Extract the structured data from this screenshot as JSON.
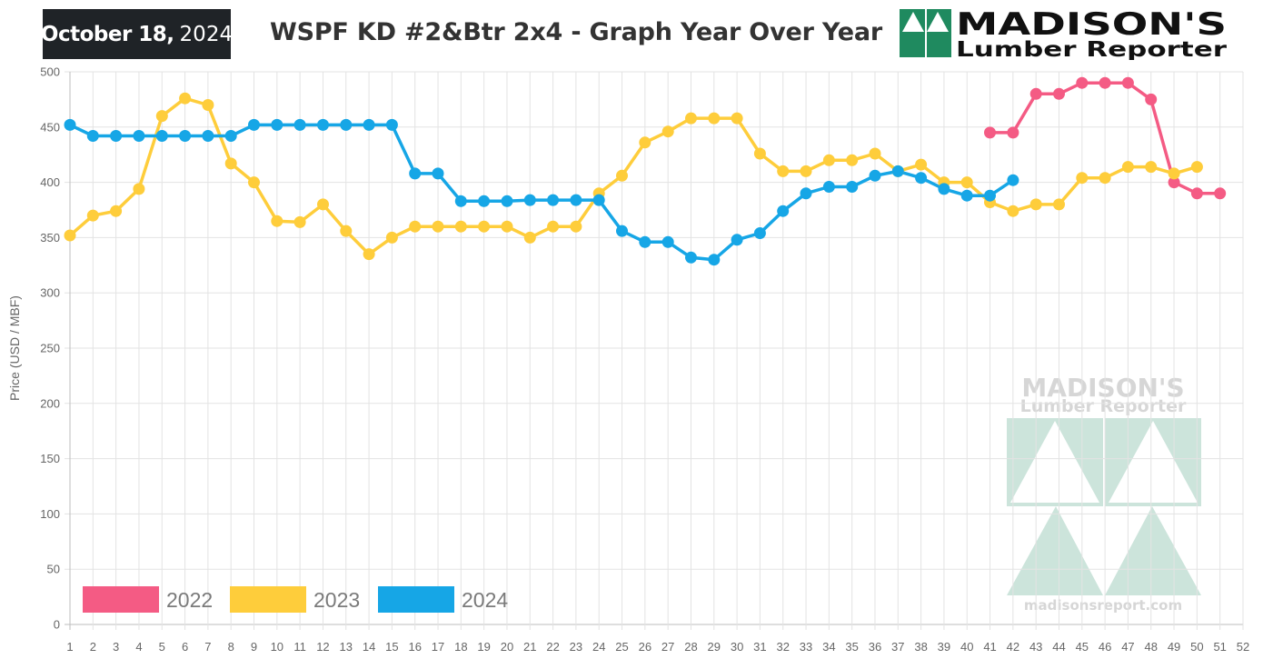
{
  "header": {
    "date_month_day": "October 18,",
    "date_year": "2024",
    "title": "WSPF KD #2&Btr 2x4 - Graph Year Over Year",
    "logo_line1": "MADISON'S",
    "logo_line2": "Lumber Reporter"
  },
  "watermark": {
    "line1": "MADISON'S",
    "line2": "Lumber Reporter",
    "url": "madisonsreport.com"
  },
  "chart_data": {
    "type": "line",
    "xlabel": "",
    "ylabel": "Price (USD / MBF)",
    "xlim": [
      1,
      52
    ],
    "ylim": [
      0,
      500
    ],
    "x_ticks": [
      1,
      2,
      3,
      4,
      5,
      6,
      7,
      8,
      9,
      10,
      11,
      12,
      13,
      14,
      15,
      16,
      17,
      18,
      19,
      20,
      21,
      22,
      23,
      24,
      25,
      26,
      27,
      28,
      29,
      30,
      31,
      32,
      33,
      34,
      35,
      36,
      37,
      38,
      39,
      40,
      41,
      42,
      43,
      44,
      45,
      46,
      47,
      48,
      49,
      50,
      51,
      52
    ],
    "y_ticks": [
      0,
      50,
      100,
      150,
      200,
      250,
      300,
      350,
      400,
      450,
      500
    ],
    "grid": true,
    "legend_position": "bottom-left",
    "series": [
      {
        "name": "2022",
        "color": "#f45b84",
        "x": [
          41,
          42,
          43,
          44,
          45,
          46,
          47,
          48,
          49,
          50,
          51
        ],
        "values": [
          445,
          445,
          480,
          480,
          490,
          490,
          490,
          475,
          400,
          390,
          390
        ]
      },
      {
        "name": "2023",
        "color": "#fecd3b",
        "x": [
          1,
          2,
          3,
          4,
          5,
          6,
          7,
          8,
          9,
          10,
          11,
          12,
          13,
          14,
          15,
          16,
          17,
          18,
          19,
          20,
          21,
          22,
          23,
          24,
          25,
          26,
          27,
          28,
          29,
          30,
          31,
          32,
          33,
          34,
          35,
          36,
          37,
          38,
          39,
          40,
          41,
          42,
          43,
          44,
          45,
          46,
          47,
          48,
          49,
          50
        ],
        "values": [
          352,
          370,
          374,
          394,
          460,
          476,
          470,
          417,
          400,
          365,
          364,
          380,
          356,
          335,
          350,
          360,
          360,
          360,
          360,
          360,
          350,
          360,
          360,
          390,
          406,
          436,
          446,
          458,
          458,
          458,
          426,
          410,
          410,
          420,
          420,
          426,
          410,
          416,
          400,
          400,
          382,
          374,
          380,
          380,
          404,
          404,
          414,
          414,
          408,
          414
        ]
      },
      {
        "name": "2024",
        "color": "#16a6e6",
        "x": [
          1,
          2,
          3,
          4,
          5,
          6,
          7,
          8,
          9,
          10,
          11,
          12,
          13,
          14,
          15,
          16,
          17,
          18,
          19,
          20,
          21,
          22,
          23,
          24,
          25,
          26,
          27,
          28,
          29,
          30,
          31,
          32,
          33,
          34,
          35,
          36,
          37,
          38,
          39,
          40,
          41,
          42
        ],
        "values": [
          452,
          442,
          442,
          442,
          442,
          442,
          442,
          442,
          452,
          452,
          452,
          452,
          452,
          452,
          452,
          408,
          408,
          383,
          383,
          383,
          384,
          384,
          384,
          384,
          356,
          346,
          346,
          332,
          330,
          348,
          354,
          374,
          390,
          396,
          396,
          406,
          410,
          404,
          394,
          388,
          388,
          402
        ]
      }
    ]
  }
}
